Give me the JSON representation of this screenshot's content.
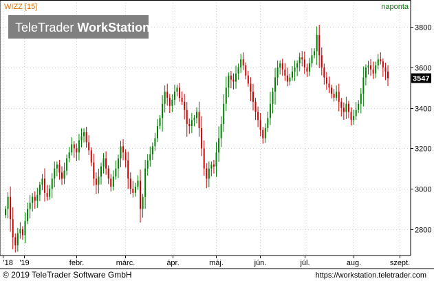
{
  "header": {
    "instrument": "WIZZ [15]",
    "period": "naponta"
  },
  "logo": {
    "part1": "TeleTrader",
    "part2": "WorkStation"
  },
  "footer": {
    "copyright": "© 2019 TeleTrader Software GmbH",
    "url": "https://workstation.teletrader.com"
  },
  "colors": {
    "up": "#008000",
    "down": "#cc0000",
    "grid": "#cccccc",
    "title": "#e07000",
    "period": "#008000",
    "last_price_bg": "#000000"
  },
  "chart_data": {
    "type": "candlestick",
    "ylim": [
      2680,
      3920
    ],
    "yticks": [
      2800,
      3000,
      3200,
      3400,
      3600,
      3800
    ],
    "last_price": "3547",
    "x_labels": [
      "'18",
      "'19",
      "febr.",
      "márc.",
      "ápr.",
      "máj.",
      "jún.",
      "júl.",
      "aug.",
      "szept."
    ],
    "grid": true,
    "close": [
      2900,
      2960,
      2850,
      2760,
      2720,
      2780,
      2800,
      2770,
      2840,
      2900,
      2930,
      2960,
      2940,
      2970,
      3020,
      3050,
      2980,
      2960,
      3000,
      3050,
      3100,
      3120,
      3080,
      3050,
      3090,
      3150,
      3180,
      3220,
      3200,
      3180,
      3240,
      3260,
      3280,
      3230,
      3190,
      3130,
      3050,
      3020,
      3060,
      3110,
      3150,
      3100,
      3050,
      3010,
      3060,
      3100,
      3150,
      3210,
      3180,
      3140,
      3050,
      3000,
      2980,
      3010,
      3040,
      2900,
      2960,
      3100,
      3140,
      3170,
      3210,
      3250,
      3310,
      3350,
      3420,
      3480,
      3450,
      3410,
      3440,
      3480,
      3500,
      3450,
      3430,
      3390,
      3320,
      3310,
      3340,
      3350,
      3380,
      3300,
      3200,
      3100,
      3050,
      3100,
      3120,
      3110,
      3180,
      3250,
      3320,
      3420,
      3500,
      3560,
      3540,
      3530,
      3570,
      3600,
      3640,
      3610,
      3560,
      3520,
      3480,
      3430,
      3380,
      3340,
      3290,
      3250,
      3300,
      3350,
      3420,
      3480,
      3550,
      3600,
      3620,
      3590,
      3560,
      3530,
      3550,
      3580,
      3600,
      3620,
      3650,
      3640,
      3600,
      3580,
      3620,
      3660,
      3680,
      3760,
      3660,
      3600,
      3550,
      3520,
      3500,
      3470,
      3450,
      3480,
      3430,
      3400,
      3380,
      3420,
      3380,
      3340,
      3360,
      3390,
      3420,
      3470,
      3550,
      3600,
      3610,
      3590,
      3570,
      3610,
      3640,
      3630,
      3600,
      3580,
      3547
    ]
  }
}
